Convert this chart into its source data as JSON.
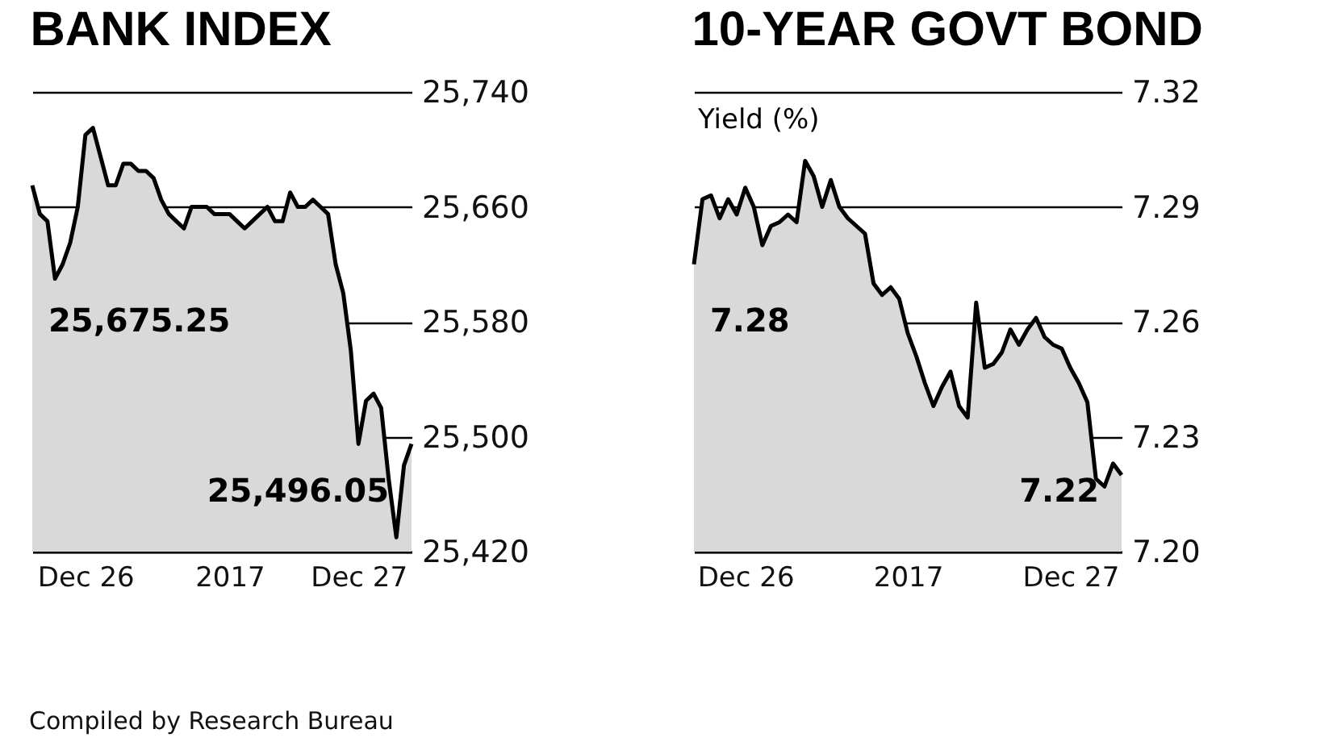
{
  "chart_data": [
    {
      "type": "area",
      "title": "BANK INDEX",
      "categories": [
        null,
        null,
        null,
        null,
        null,
        null,
        null,
        "Dec 26",
        null,
        null,
        null,
        null,
        null,
        null,
        null,
        null,
        null,
        null,
        null,
        null,
        null,
        null,
        null,
        null,
        null,
        null,
        "2017",
        null,
        null,
        null,
        null,
        null,
        null,
        null,
        null,
        null,
        null,
        null,
        null,
        null,
        null,
        null,
        null,
        "Dec 27",
        null,
        null,
        null,
        null,
        null,
        null,
        null
      ],
      "series": [
        {
          "color": "#d9d9d9",
          "values": [
            25675,
            25655,
            25650,
            25610,
            25620,
            25635,
            25660,
            25710,
            25715,
            25695,
            25675,
            25675,
            25690,
            25690,
            25685,
            25685,
            25680,
            25665,
            25655,
            25650,
            25645,
            25660,
            25660,
            25660,
            25655,
            25655,
            25655,
            25650,
            25645,
            25650,
            25655,
            25660,
            25650,
            25650,
            25670,
            25660,
            25660,
            25665,
            25660,
            25655,
            25620,
            25600,
            25560,
            25495,
            25525,
            25530,
            25520,
            25470,
            25430,
            25480,
            25495
          ]
        }
      ],
      "ylim": [
        25420,
        25740
      ],
      "yticks": [
        {
          "value": 25420,
          "label": "25,420"
        },
        {
          "value": 25500,
          "label": "25,500"
        },
        {
          "value": 25580,
          "label": "25,580"
        },
        {
          "value": 25660,
          "label": "25,660"
        },
        {
          "value": 25740,
          "label": "25,740"
        }
      ],
      "grid": "y",
      "annotations": [
        "25,675.25",
        "25,496.05",
        "Compiled by Research Bureau"
      ]
    },
    {
      "type": "area",
      "title": "10-YEAR GOVT BOND",
      "ylabel": "Yield (%)",
      "categories": [
        null,
        null,
        null,
        null,
        null,
        null,
        "Dec 26",
        null,
        null,
        null,
        null,
        null,
        null,
        null,
        null,
        null,
        null,
        null,
        null,
        null,
        null,
        null,
        null,
        null,
        null,
        "2017",
        null,
        null,
        null,
        null,
        null,
        null,
        null,
        null,
        null,
        null,
        null,
        null,
        null,
        null,
        null,
        null,
        null,
        null,
        "Dec 27",
        null,
        null,
        null,
        null,
        null,
        null
      ],
      "series": [
        {
          "color": "#d9d9d9",
          "values": [
            7.275,
            7.292,
            7.293,
            7.287,
            7.292,
            7.288,
            7.295,
            7.29,
            7.28,
            7.285,
            7.286,
            7.288,
            7.286,
            7.302,
            7.298,
            7.29,
            7.297,
            7.29,
            7.287,
            7.285,
            7.283,
            7.27,
            7.267,
            7.269,
            7.266,
            7.257,
            7.251,
            7.244,
            7.238,
            7.243,
            7.247,
            7.238,
            7.235,
            7.265,
            7.248,
            7.249,
            7.252,
            7.258,
            7.254,
            7.258,
            7.261,
            7.256,
            7.254,
            7.253,
            7.248,
            7.244,
            7.239,
            7.219,
            7.217,
            7.223,
            7.22
          ]
        }
      ],
      "ylim": [
        7.2,
        7.32
      ],
      "yticks": [
        {
          "value": 7.2,
          "label": "7.20"
        },
        7.23,
        7.26,
        7.29,
        7.32
      ],
      "grid": "y",
      "annotations": [
        "7.28",
        "7.22"
      ]
    }
  ]
}
